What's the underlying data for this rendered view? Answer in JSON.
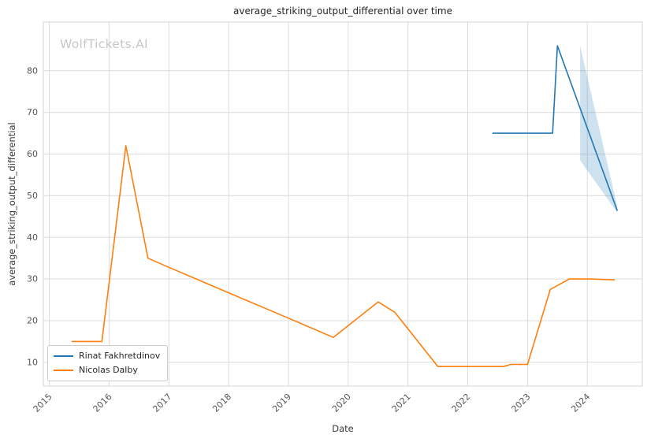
{
  "chart": {
    "title": "average_striking_output_differential over time",
    "xlabel": "Date",
    "ylabel": "average_striking_output_differential",
    "watermark": "WolfTickets.AI",
    "legend": {
      "position": "lower-left",
      "items": [
        {
          "label": "Rinat Fakhretdinov",
          "color": "#1f77b4"
        },
        {
          "label": "Nicolas Dalby",
          "color": "#ff7f0e"
        }
      ]
    }
  },
  "chart_data": {
    "type": "line",
    "title": "average_striking_output_differential over time",
    "xlabel": "Date",
    "ylabel": "average_striking_output_differential",
    "xlim": [
      2014.9,
      2024.92
    ],
    "ylim": [
      4.3,
      91.7
    ],
    "x_ticks": [
      2015,
      2016,
      2017,
      2018,
      2019,
      2020,
      2021,
      2022,
      2023,
      2024
    ],
    "y_ticks": [
      10,
      20,
      30,
      40,
      50,
      60,
      70,
      80
    ],
    "grid": true,
    "grid_color": "#dcdcdc",
    "frame_color": "#d4d4d4",
    "legend_position": "lower-left",
    "series": [
      {
        "name": "Rinat Fakhretdinov",
        "color": "#1f77b4",
        "x": [
          2022.42,
          2023.42,
          2023.5,
          2024.5
        ],
        "y": [
          65,
          65,
          86,
          46.5
        ]
      },
      {
        "name": "Nicolas Dalby",
        "color": "#ff7f0e",
        "x": [
          2015.38,
          2015.88,
          2016.28,
          2016.65,
          2017.0,
          2018.0,
          2019.0,
          2019.75,
          2020.5,
          2020.78,
          2021.5,
          2022.35,
          2022.6,
          2022.72,
          2023.0,
          2023.38,
          2023.7,
          2024.05,
          2024.45
        ],
        "y": [
          15,
          15,
          62,
          35,
          32.8,
          26.7,
          20.6,
          16,
          24.5,
          22,
          9,
          9,
          9,
          9.5,
          9.5,
          27.5,
          30,
          30,
          29.8
        ]
      }
    ],
    "band": {
      "series": "Rinat Fakhretdinov",
      "x": [
        2023.88,
        2024.5
      ],
      "upper": [
        86,
        47.5
      ],
      "lower": [
        58.5,
        46
      ],
      "color": "#1f77b4",
      "opacity": 0.22
    }
  }
}
